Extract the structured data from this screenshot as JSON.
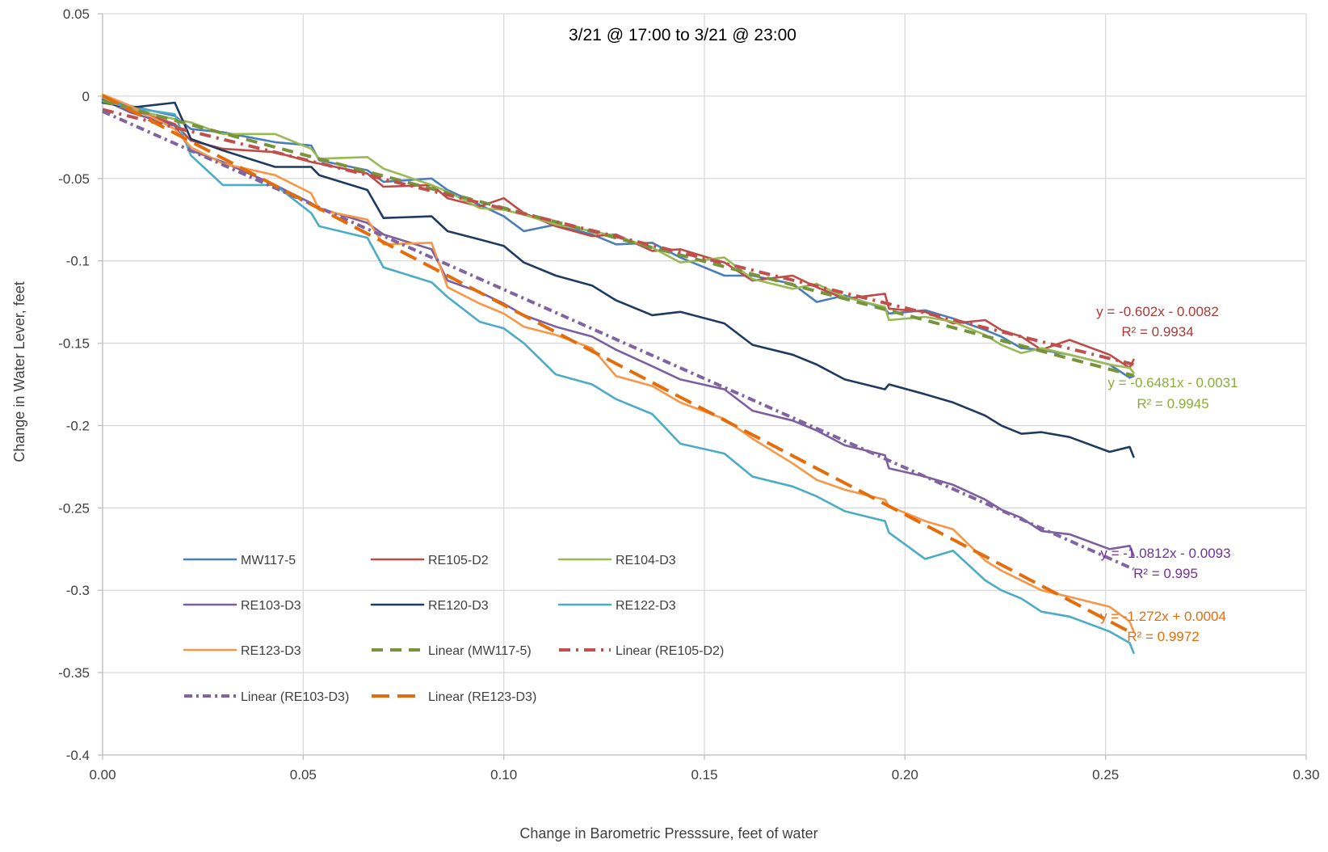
{
  "chart_data": {
    "type": "line",
    "title": "3/21 @ 17:00 to 3/21 @ 23:00",
    "xlabel": "Change in Barometric Presssure, feet of water",
    "ylabel": "Change in Water Lever, feet",
    "xlim": [
      0,
      0.3
    ],
    "ylim": [
      -0.4,
      0.05
    ],
    "xticks": [
      "0.00",
      "0.05",
      "0.10",
      "0.15",
      "0.20",
      "0.25",
      "0.30"
    ],
    "yticks": [
      "0.05",
      "0",
      "-0.05",
      "-0.1",
      "-0.15",
      "-0.2",
      "-0.25",
      "-0.3",
      "-0.35",
      "-0.4"
    ],
    "grid": true,
    "legend_position": "bottom-left, inside plot",
    "series": [
      {
        "name": "MW117-5",
        "color": "#4a7ebb",
        "style": "solid",
        "x": [
          0,
          0.007,
          0.018,
          0.022,
          0.03,
          0.043,
          0.052,
          0.054,
          0.066,
          0.07,
          0.082,
          0.086,
          0.094,
          0.1,
          0.105,
          0.113,
          0.122,
          0.128,
          0.137,
          0.144,
          0.155,
          0.162,
          0.172,
          0.178,
          0.185,
          0.195,
          0.196,
          0.205,
          0.212,
          0.22,
          0.224,
          0.229,
          0.234,
          0.241,
          0.251,
          0.256,
          0.257
        ],
        "y": [
          -0.002,
          -0.006,
          -0.012,
          -0.02,
          -0.022,
          -0.028,
          -0.03,
          -0.039,
          -0.045,
          -0.052,
          -0.05,
          -0.057,
          -0.066,
          -0.073,
          -0.082,
          -0.078,
          -0.084,
          -0.09,
          -0.089,
          -0.098,
          -0.109,
          -0.109,
          -0.114,
          -0.125,
          -0.121,
          -0.129,
          -0.132,
          -0.13,
          -0.135,
          -0.142,
          -0.146,
          -0.153,
          -0.154,
          -0.157,
          -0.163,
          -0.171,
          -0.17
        ]
      },
      {
        "name": "RE105-D2",
        "color": "#be4b48",
        "style": "solid",
        "x": [
          0,
          0.007,
          0.018,
          0.022,
          0.03,
          0.043,
          0.052,
          0.054,
          0.066,
          0.07,
          0.082,
          0.086,
          0.094,
          0.1,
          0.105,
          0.113,
          0.122,
          0.128,
          0.137,
          0.144,
          0.155,
          0.162,
          0.172,
          0.178,
          0.185,
          0.195,
          0.196,
          0.205,
          0.212,
          0.22,
          0.224,
          0.229,
          0.234,
          0.241,
          0.251,
          0.256,
          0.257
        ],
        "y": [
          -0.002,
          -0.008,
          -0.017,
          -0.027,
          -0.032,
          -0.034,
          -0.04,
          -0.041,
          -0.047,
          -0.055,
          -0.054,
          -0.062,
          -0.067,
          -0.062,
          -0.071,
          -0.079,
          -0.085,
          -0.084,
          -0.094,
          -0.093,
          -0.101,
          -0.112,
          -0.109,
          -0.116,
          -0.123,
          -0.12,
          -0.129,
          -0.131,
          -0.138,
          -0.136,
          -0.142,
          -0.146,
          -0.154,
          -0.148,
          -0.157,
          -0.165,
          -0.16
        ]
      },
      {
        "name": "RE104-D3",
        "color": "#98b954",
        "style": "solid",
        "x": [
          0,
          0.007,
          0.018,
          0.022,
          0.03,
          0.043,
          0.052,
          0.054,
          0.066,
          0.07,
          0.082,
          0.086,
          0.094,
          0.1,
          0.105,
          0.113,
          0.122,
          0.128,
          0.137,
          0.144,
          0.155,
          0.162,
          0.172,
          0.178,
          0.185,
          0.195,
          0.196,
          0.205,
          0.212,
          0.22,
          0.224,
          0.229,
          0.234,
          0.241,
          0.251,
          0.256,
          0.257
        ],
        "y": [
          -0.001,
          -0.008,
          -0.014,
          -0.016,
          -0.023,
          -0.023,
          -0.032,
          -0.038,
          -0.037,
          -0.044,
          -0.054,
          -0.058,
          -0.068,
          -0.069,
          -0.072,
          -0.078,
          -0.082,
          -0.085,
          -0.092,
          -0.101,
          -0.098,
          -0.111,
          -0.117,
          -0.114,
          -0.122,
          -0.128,
          -0.136,
          -0.134,
          -0.137,
          -0.145,
          -0.151,
          -0.156,
          -0.153,
          -0.157,
          -0.163,
          -0.165,
          -0.168
        ]
      },
      {
        "name": "RE103-D3",
        "color": "#7d5fa0",
        "style": "solid",
        "x": [
          0,
          0.007,
          0.018,
          0.022,
          0.03,
          0.043,
          0.052,
          0.054,
          0.066,
          0.07,
          0.082,
          0.086,
          0.094,
          0.1,
          0.105,
          0.113,
          0.122,
          0.128,
          0.137,
          0.144,
          0.155,
          0.162,
          0.172,
          0.178,
          0.185,
          0.195,
          0.196,
          0.205,
          0.212,
          0.22,
          0.224,
          0.229,
          0.234,
          0.241,
          0.251,
          0.256,
          0.257
        ],
        "y": [
          -0.002,
          -0.01,
          -0.018,
          -0.033,
          -0.04,
          -0.054,
          -0.065,
          -0.068,
          -0.077,
          -0.084,
          -0.093,
          -0.112,
          -0.119,
          -0.126,
          -0.133,
          -0.14,
          -0.146,
          -0.154,
          -0.164,
          -0.172,
          -0.178,
          -0.191,
          -0.197,
          -0.203,
          -0.212,
          -0.218,
          -0.226,
          -0.231,
          -0.236,
          -0.245,
          -0.251,
          -0.256,
          -0.264,
          -0.266,
          -0.275,
          -0.273,
          -0.279
        ]
      },
      {
        "name": "RE120-D3",
        "color": "#1f3a5f",
        "style": "solid",
        "x": [
          0,
          0.007,
          0.018,
          0.022,
          0.03,
          0.043,
          0.052,
          0.054,
          0.066,
          0.07,
          0.082,
          0.086,
          0.094,
          0.1,
          0.105,
          0.113,
          0.122,
          0.128,
          0.137,
          0.144,
          0.155,
          0.162,
          0.172,
          0.178,
          0.185,
          0.195,
          0.196,
          0.205,
          0.212,
          0.22,
          0.224,
          0.229,
          0.234,
          0.241,
          0.251,
          0.256,
          0.257
        ],
        "y": [
          -0.004,
          -0.007,
          -0.004,
          -0.026,
          -0.033,
          -0.043,
          -0.043,
          -0.048,
          -0.057,
          -0.074,
          -0.073,
          -0.082,
          -0.087,
          -0.091,
          -0.101,
          -0.109,
          -0.115,
          -0.124,
          -0.133,
          -0.131,
          -0.138,
          -0.151,
          -0.157,
          -0.163,
          -0.172,
          -0.178,
          -0.175,
          -0.181,
          -0.186,
          -0.194,
          -0.2,
          -0.205,
          -0.204,
          -0.207,
          -0.216,
          -0.213,
          -0.219
        ]
      },
      {
        "name": "RE122-D3",
        "color": "#4bacc6",
        "style": "solid",
        "x": [
          0,
          0.007,
          0.018,
          0.022,
          0.03,
          0.043,
          0.052,
          0.054,
          0.066,
          0.07,
          0.082,
          0.086,
          0.094,
          0.1,
          0.105,
          0.113,
          0.122,
          0.128,
          0.137,
          0.144,
          0.155,
          0.162,
          0.172,
          0.178,
          0.185,
          0.195,
          0.196,
          0.205,
          0.212,
          0.22,
          0.224,
          0.229,
          0.234,
          0.241,
          0.251,
          0.256,
          0.257
        ],
        "y": [
          -0.003,
          -0.007,
          -0.011,
          -0.036,
          -0.054,
          -0.054,
          -0.071,
          -0.079,
          -0.086,
          -0.104,
          -0.113,
          -0.122,
          -0.137,
          -0.141,
          -0.15,
          -0.169,
          -0.175,
          -0.184,
          -0.193,
          -0.211,
          -0.217,
          -0.231,
          -0.237,
          -0.243,
          -0.252,
          -0.258,
          -0.265,
          -0.281,
          -0.276,
          -0.294,
          -0.3,
          -0.305,
          -0.313,
          -0.316,
          -0.325,
          -0.332,
          -0.338
        ]
      },
      {
        "name": "RE123-D3",
        "color": "#f79646",
        "style": "solid",
        "x": [
          0,
          0.007,
          0.018,
          0.022,
          0.03,
          0.043,
          0.052,
          0.054,
          0.066,
          0.07,
          0.082,
          0.086,
          0.094,
          0.1,
          0.105,
          0.113,
          0.122,
          0.128,
          0.137,
          0.144,
          0.155,
          0.162,
          0.172,
          0.178,
          0.185,
          0.195,
          0.196,
          0.205,
          0.212,
          0.22,
          0.224,
          0.229,
          0.234,
          0.241,
          0.251,
          0.256,
          0.257
        ],
        "y": [
          0.001,
          -0.006,
          -0.02,
          -0.031,
          -0.041,
          -0.048,
          -0.059,
          -0.069,
          -0.075,
          -0.09,
          -0.089,
          -0.116,
          -0.126,
          -0.132,
          -0.14,
          -0.145,
          -0.153,
          -0.17,
          -0.176,
          -0.186,
          -0.196,
          -0.208,
          -0.223,
          -0.233,
          -0.239,
          -0.245,
          -0.249,
          -0.258,
          -0.263,
          -0.282,
          -0.288,
          -0.294,
          -0.3,
          -0.304,
          -0.31,
          -0.319,
          -0.325
        ]
      },
      {
        "name": "Linear (MW117-5)",
        "color": "#77933c",
        "style": "dash",
        "x": [
          0,
          0.257
        ],
        "y": [
          -0.0031,
          -0.1697
        ]
      },
      {
        "name": "Linear (RE105-D2)",
        "color": "#c0504d",
        "style": "dash-dot",
        "x": [
          0,
          0.257
        ],
        "y": [
          -0.0082,
          -0.1629
        ]
      },
      {
        "name": "Linear (RE103-D3)",
        "color": "#8064a2",
        "style": "dot-dash",
        "x": [
          0,
          0.257
        ],
        "y": [
          -0.0093,
          -0.2872
        ]
      },
      {
        "name": "Linear (RE123-D3)",
        "color": "#e46c0a",
        "style": "long-dash",
        "x": [
          0,
          0.257
        ],
        "y": [
          0.0004,
          -0.3265
        ]
      }
    ],
    "annotations": [
      {
        "eq": "y = -0.602x - 0.0082",
        "r2": "R² = 0.9934",
        "color": "#a83a38"
      },
      {
        "eq": "y = -0.6481x - 0.0031",
        "r2": "R² = 0.9945",
        "color": "#8cab3b"
      },
      {
        "eq": "y = -1.0812x - 0.0093",
        "r2": "R² = 0.995",
        "color": "#7030a0"
      },
      {
        "eq": "y = -1.272x + 0.0004",
        "r2": "R² = 0.9972",
        "color": "#e46c0a"
      }
    ]
  }
}
